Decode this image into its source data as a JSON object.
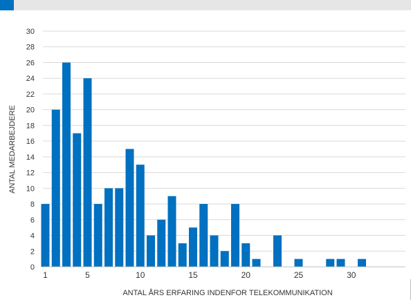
{
  "header": {
    "title": ""
  },
  "chart_data": {
    "type": "bar",
    "xlabel": "ANTAL ÅRS ERFARING INDENFOR TELEKOMMUNIKATION",
    "ylabel": "ANTAL MEDARBEJDERE",
    "ylim": [
      0,
      30
    ],
    "yticks": [
      0,
      2,
      4,
      6,
      8,
      10,
      12,
      14,
      16,
      18,
      20,
      22,
      24,
      26,
      28,
      30
    ],
    "xticks": [
      1,
      5,
      10,
      15,
      20,
      25,
      30
    ],
    "grid": true,
    "bar_color": "#0070c0",
    "categories": [
      1,
      2,
      3,
      4,
      5,
      6,
      7,
      8,
      9,
      10,
      11,
      12,
      13,
      14,
      15,
      16,
      17,
      18,
      19,
      20,
      21,
      22,
      23,
      24,
      25,
      26,
      27,
      28,
      29,
      30,
      31,
      32
    ],
    "values": [
      8,
      20,
      26,
      17,
      24,
      8,
      10,
      10,
      15,
      13,
      4,
      6,
      9,
      3,
      5,
      8,
      4,
      2,
      8,
      3,
      1,
      0,
      4,
      0,
      1,
      0,
      0,
      1,
      1,
      0,
      1,
      0
    ]
  }
}
